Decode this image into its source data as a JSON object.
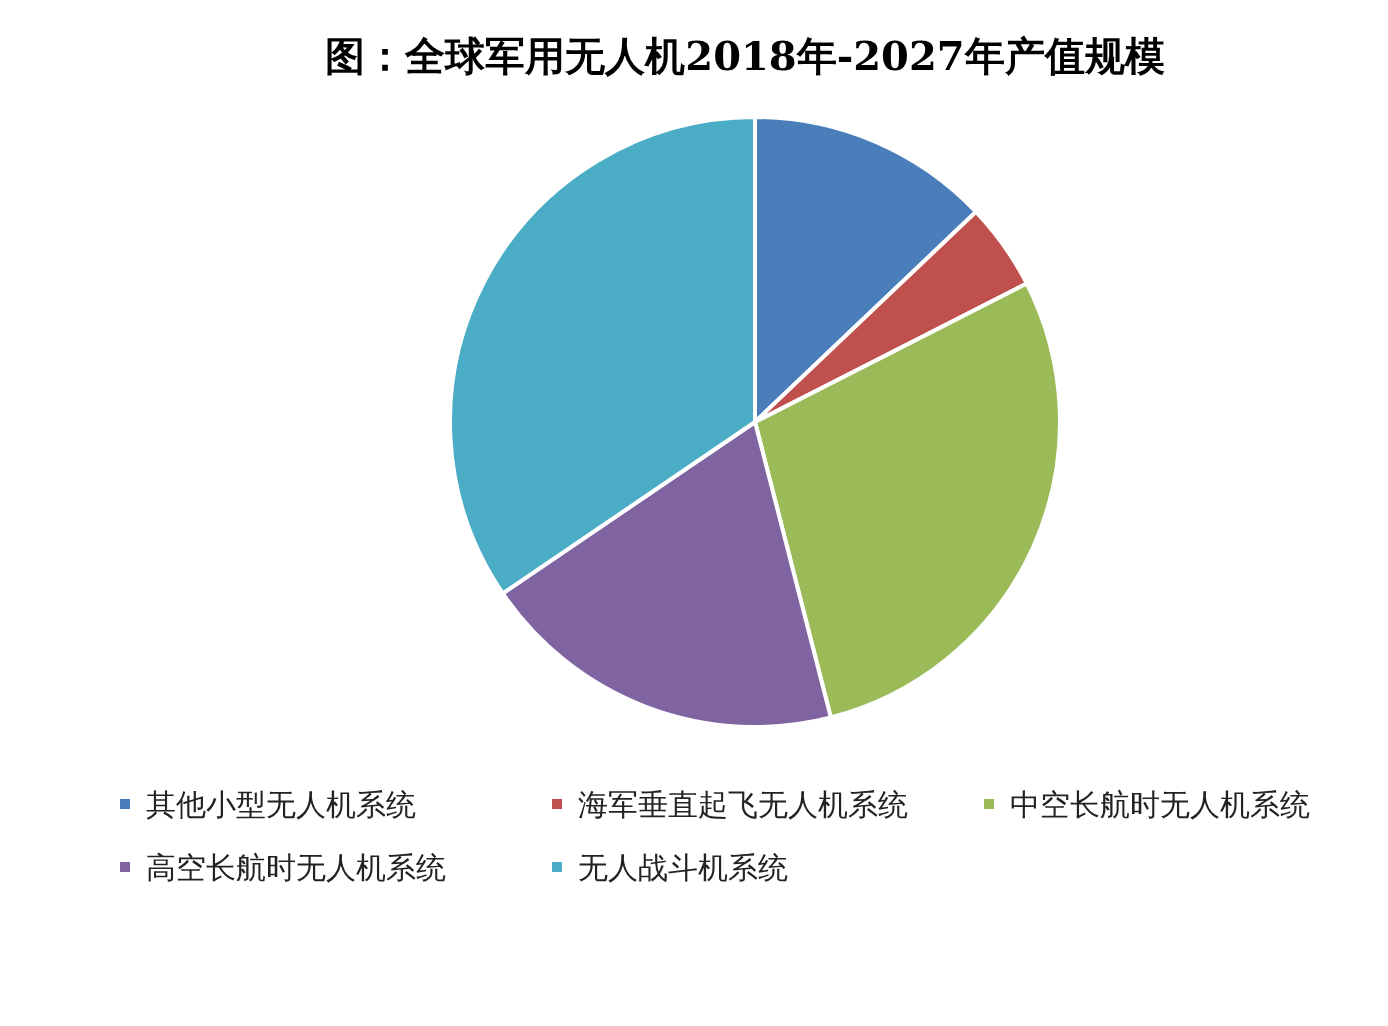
{
  "chart_data": {
    "type": "pie",
    "title": "图：全球军用无人机2018年-2027年产值规模",
    "categories": [
      "其他小型无人机系统",
      "海军垂直起飞无人机系统",
      "中空长航时无人机系统",
      "高空长航时无人机系统",
      "无人战斗机系统"
    ],
    "values": [
      12.9,
      4.6,
      28.5,
      19.5,
      34.5
    ],
    "colors": [
      "#4a7ebb",
      "#c0504d",
      "#9bbb59",
      "#8064a2",
      "#4bacc6"
    ],
    "legend": "bottom"
  }
}
